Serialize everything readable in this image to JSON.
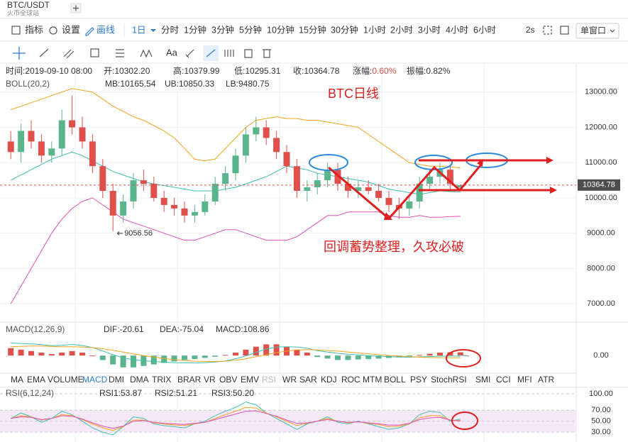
{
  "header": {
    "symbol": "BTC/USDT",
    "exchange": "火币全球站"
  },
  "toolbar": {
    "tools": [
      "指标",
      "设置",
      "画线"
    ],
    "intervals": [
      "1日",
      "分时",
      "1分钟",
      "3分钟",
      "5分钟",
      "10分钟",
      "15分钟",
      "30分钟",
      "1小时",
      "2小时",
      "3小时",
      "4小时",
      "6小时"
    ],
    "refresh": "2s",
    "window": "单窗口"
  },
  "drawing_toolbar": {
    "text_tool": "Aa"
  },
  "info": [
    {
      "label": "时间:",
      "value": "2019-09-10 08:00"
    },
    {
      "label": "开:",
      "value": "10302.20"
    },
    {
      "label": "高:",
      "value": "10379.99"
    },
    {
      "label": "低:",
      "value": "10295.31"
    },
    {
      "label": "收:",
      "value": "10364.78"
    },
    {
      "label": "涨幅:",
      "value": "0.60%"
    },
    {
      "label": "振幅:",
      "value": "0.82%"
    }
  ],
  "indicator_tabs": {
    "items": [
      "MA",
      "EMA",
      "VOLUME",
      "MACD",
      "DMI",
      "DMA",
      "TRIX",
      "BRAR",
      "VR",
      "OBV",
      "EMV",
      "RSI",
      "WR",
      "SAR",
      "KDJ",
      "ROC",
      "MTM",
      "BOLL",
      "PSY",
      "StochRSI",
      "SMI",
      "CCI",
      "MFI",
      "ATR"
    ],
    "active": 3
  },
  "chart_data": [
    {
      "type": "candlestick",
      "title": "BTC日线",
      "annotation": "回调蓄势整理，久攻必破",
      "legend_title": "BOLL(20,2)",
      "up_color": "#5bb58c",
      "down_color": "#e0504b",
      "grid": true,
      "open": [
        11600,
        11300,
        11900,
        11600,
        11200,
        11400,
        12200,
        12000,
        11600,
        10900,
        10200,
        9500,
        9900,
        10500,
        10400,
        10000,
        9800,
        9700,
        9500,
        9600,
        9900,
        10400,
        10700,
        11200,
        11800,
        12000,
        11700,
        11300,
        10900,
        10200,
        10300,
        10500,
        10800,
        10400,
        10200,
        10300,
        10200,
        10000,
        9800,
        9700,
        9900,
        10400,
        10600,
        10800,
        10302.2
      ],
      "high": [
        11900,
        12100,
        12200,
        11800,
        11600,
        12500,
        12900,
        12300,
        11800,
        11100,
        10400,
        10100,
        10700,
        10800,
        10600,
        10200,
        10000,
        9900,
        9800,
        10100,
        10600,
        10900,
        11400,
        12000,
        12300,
        12200,
        11900,
        11500,
        11100,
        10500,
        10700,
        11000,
        11000,
        10600,
        10500,
        10500,
        10400,
        10200,
        10000,
        10100,
        10600,
        10800,
        11000,
        10900,
        10379.99
      ],
      "low": [
        11100,
        11000,
        11400,
        11000,
        11000,
        11200,
        11800,
        11400,
        10700,
        10000,
        9056.56,
        9300,
        9700,
        10200,
        9900,
        9600,
        9500,
        9300,
        9300,
        9500,
        9800,
        10200,
        10500,
        11000,
        11600,
        11500,
        11100,
        10700,
        10000,
        9900,
        10100,
        10300,
        10200,
        10000,
        10000,
        10100,
        9900,
        9600,
        9400,
        9500,
        9700,
        10200,
        10400,
        10200,
        10295.31
      ],
      "close": [
        11300,
        11900,
        11600,
        11200,
        11400,
        12200,
        12000,
        11600,
        10900,
        10200,
        9500,
        9900,
        10500,
        10400,
        10000,
        9800,
        9700,
        9500,
        9600,
        9900,
        10400,
        10700,
        11200,
        11800,
        12000,
        11700,
        11300,
        10900,
        10200,
        10300,
        10500,
        10800,
        10400,
        10200,
        10300,
        10200,
        10000,
        9800,
        9700,
        9900,
        10400,
        10600,
        10800,
        10400,
        10364.78
      ],
      "series": [
        {
          "name": "MB:10165.54",
          "color": "#3bbfb0",
          "values": [
            10500,
            10650,
            10800,
            10950,
            11100,
            11200,
            11300,
            11200,
            11050,
            10900,
            10750,
            10650,
            10550,
            10450,
            10400,
            10350,
            10300,
            10250,
            10200,
            10200,
            10200,
            10250,
            10300,
            10400,
            10500,
            10600,
            10750,
            10900,
            10850,
            10800,
            10700,
            10650,
            10600,
            10550,
            10500,
            10450,
            10350,
            10250,
            10200,
            10150,
            10100,
            10150,
            10200,
            10180,
            10165.54
          ]
        },
        {
          "name": "UB:10850.33",
          "color": "#f2a31c",
          "values": [
            12500,
            12600,
            12700,
            12800,
            12900,
            13000,
            13100,
            13050,
            13000,
            12800,
            12600,
            12450,
            12300,
            12200,
            12050,
            11900,
            11700,
            11400,
            11100,
            11050,
            11100,
            11400,
            11700,
            12000,
            12200,
            12250,
            12300,
            12250,
            12250,
            12200,
            12200,
            12150,
            12100,
            12050,
            12000,
            11800,
            11600,
            11400,
            11200,
            11000,
            10950,
            10900,
            10900,
            10880,
            10850.33
          ]
        },
        {
          "name": "LB:9480.75",
          "color": "#e04fb8",
          "values": [
            7000,
            7500,
            8000,
            8500,
            9000,
            9400,
            9700,
            9900,
            10000,
            9800,
            9600,
            9400,
            9300,
            9200,
            9100,
            9000,
            8900,
            8800,
            8800,
            8900,
            9000,
            9100,
            9100,
            9000,
            8900,
            8800,
            8800,
            8800,
            8900,
            9100,
            9300,
            9500,
            9500,
            9600,
            9600,
            9600,
            9600,
            9500,
            9450,
            9450,
            9500,
            9450,
            9450,
            9470,
            9480.75
          ]
        }
      ],
      "ylim": [
        6500,
        13800
      ],
      "yticks": [
        {
          "value": 7000,
          "label": "7000.00"
        },
        {
          "value": 8000,
          "label": "8000.00"
        },
        {
          "value": 9000,
          "label": "9000.00"
        },
        {
          "value": 10000,
          "label": "10000.00"
        },
        {
          "value": 11000,
          "label": "11000.00"
        },
        {
          "value": 12000,
          "label": "12000.00"
        },
        {
          "value": 13000,
          "label": "13000.00"
        }
      ]
    },
    {
      "type": "macd",
      "title": "MACD(12,26,9)",
      "histogram_label": "MACD:108.86",
      "histogram_label_color": "#e04fb8",
      "up_color": "#e0504b",
      "down_color": "#5bb58c",
      "values": [
        250,
        200,
        150,
        100,
        50,
        100,
        150,
        100,
        0,
        -150,
        -300,
        -400,
        -400,
        -350,
        -300,
        -250,
        -200,
        -150,
        -120,
        -80,
        -40,
        20,
        100,
        200,
        300,
        380,
        380,
        300,
        200,
        100,
        -50,
        -100,
        -150,
        -150,
        -130,
        -120,
        -100,
        -80,
        -60,
        -30,
        20,
        60,
        100,
        110,
        108.86
      ],
      "series": [
        {
          "name": "DIF:-20.61",
          "color": "#3bbfb0",
          "values": [
            425,
            410,
            395,
            370,
            335,
            350,
            375,
            340,
            270,
            155,
            30,
            -80,
            -140,
            -175,
            -200,
            -225,
            -240,
            -245,
            -250,
            -240,
            -220,
            -180,
            -110,
            -10,
            110,
            220,
            290,
            300,
            290,
            250,
            165,
            120,
            75,
            45,
            25,
            0,
            -20,
            -40,
            -50,
            -55,
            -45,
            -35,
            -20,
            -18,
            -20.61
          ]
        },
        {
          "name": "DEA:-75.04",
          "color": "#f2a31c",
          "values": [
            300,
            310,
            320,
            320,
            310,
            300,
            300,
            290,
            270,
            230,
            180,
            120,
            60,
            0,
            -50,
            -100,
            -140,
            -170,
            -190,
            -200,
            -200,
            -190,
            -160,
            -110,
            -40,
            30,
            100,
            150,
            190,
            200,
            190,
            170,
            150,
            120,
            90,
            60,
            30,
            0,
            -20,
            -40,
            -55,
            -65,
            -70,
            -73,
            -75.04
          ]
        }
      ],
      "ylim": [
        -500,
        700
      ],
      "yticks": [
        {
          "value": 0,
          "label": "0.00"
        }
      ]
    },
    {
      "type": "line",
      "title": "RSI(6,12,24)",
      "band": true,
      "series": [
        {
          "name": "RSI1:53.87",
          "color": "#3bbfb0",
          "values": [
            55,
            65,
            58,
            48,
            55,
            68,
            62,
            50,
            38,
            30,
            25,
            40,
            58,
            55,
            45,
            42,
            40,
            38,
            45,
            50,
            60,
            68,
            75,
            85,
            80,
            65,
            55,
            45,
            35,
            45,
            50,
            58,
            48,
            45,
            50,
            45,
            40,
            35,
            38,
            45,
            62,
            68,
            66,
            50,
            53.87
          ]
        },
        {
          "name": "RSI2:51.21",
          "color": "#f2a31c",
          "values": [
            55,
            60,
            58,
            52,
            55,
            62,
            60,
            53,
            45,
            38,
            33,
            40,
            52,
            52,
            47,
            45,
            43,
            42,
            45,
            48,
            55,
            62,
            68,
            75,
            74,
            65,
            58,
            50,
            42,
            46,
            50,
            55,
            50,
            47,
            49,
            46,
            44,
            40,
            41,
            45,
            56,
            60,
            60,
            52,
            51.21
          ]
        },
        {
          "name": "RSI3:50.20",
          "color": "#e04fb8",
          "values": [
            55,
            58,
            57,
            53,
            55,
            60,
            59,
            54,
            47,
            41,
            37,
            41,
            50,
            51,
            48,
            46,
            45,
            44,
            46,
            48,
            53,
            58,
            63,
            68,
            69,
            64,
            59,
            52,
            46,
            47,
            50,
            53,
            50,
            48,
            49,
            47,
            45,
            43,
            43,
            46,
            53,
            56,
            57,
            52,
            50.2
          ]
        }
      ],
      "ylim": [
        16,
        109
      ],
      "yticks": [
        {
          "value": 100,
          "label": "100.00"
        },
        {
          "value": 70,
          "label": "70.00"
        },
        {
          "value": 50,
          "label": "50.00"
        },
        {
          "value": 30,
          "label": "30.00"
        }
      ]
    }
  ]
}
